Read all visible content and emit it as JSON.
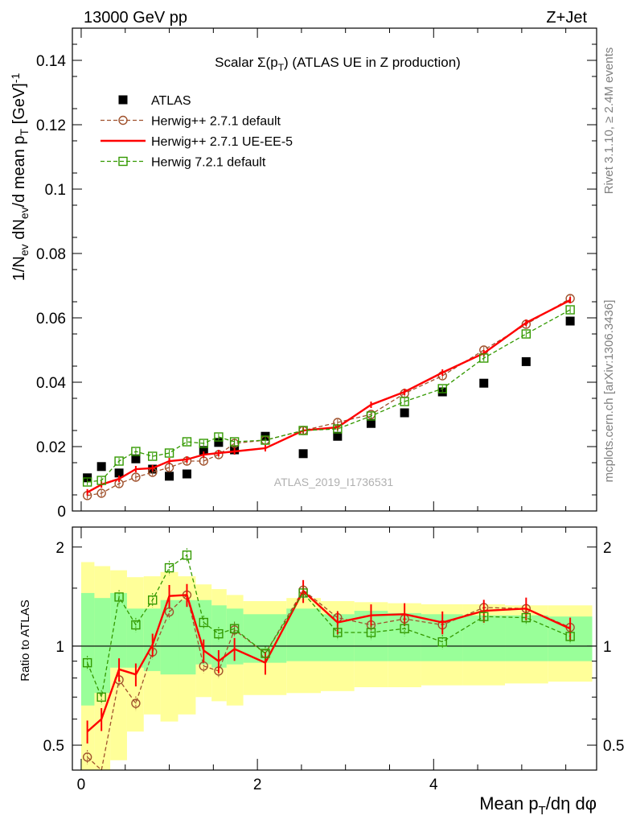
{
  "header": {
    "left_title": "13000 GeV pp",
    "right_title": "Z+Jet"
  },
  "side_labels": {
    "rivet": "Rivet 3.1.10, ≥ 2.4M events",
    "mcplots": "mcplots.cern.ch [arXiv:1306.3436]"
  },
  "watermark": "ATLAS_2019_I1736531",
  "chart_data": [
    {
      "type": "scatter",
      "panel": "main",
      "title_parts": [
        "Scalar Σ(p",
        "T",
        ") (ATLAS UE in Z production)"
      ],
      "ylabel_parts": [
        "1/N",
        "ev",
        " dN",
        "ev",
        "/d mean p",
        "T",
        " [GeV]",
        "-1"
      ],
      "ylim": [
        0,
        0.15
      ],
      "xlim": [
        -0.1,
        5.85
      ],
      "yticks": [
        0,
        0.02,
        0.04,
        0.06,
        0.08,
        0.1,
        0.12,
        0.14
      ],
      "ytick_labels": [
        "0",
        "0.02",
        "0.04",
        "0.06",
        "0.08",
        "0.1",
        "0.12",
        "0.14"
      ],
      "legend_position": "top-left",
      "x": [
        0.07,
        0.23,
        0.43,
        0.62,
        0.81,
        1.0,
        1.2,
        1.39,
        1.56,
        1.74,
        2.09,
        2.52,
        2.91,
        3.29,
        3.67,
        4.1,
        4.57,
        5.05,
        5.55
      ],
      "series": [
        {
          "name": "ATLAS",
          "style": "data",
          "color": "#000000",
          "values": [
            0.0103,
            0.0138,
            0.0118,
            0.0162,
            0.013,
            0.0108,
            0.0115,
            0.0188,
            0.0213,
            0.019,
            0.0232,
            0.0178,
            0.0232,
            0.0272,
            0.0305,
            0.037,
            0.0397,
            0.0464,
            0.059
          ]
        },
        {
          "name": "Herwig++ 2.7.1 default",
          "style": "circle-dash",
          "color": "#a0522d",
          "values": [
            0.0048,
            0.0055,
            0.0085,
            0.0105,
            0.012,
            0.0135,
            0.0155,
            0.0155,
            0.0175,
            0.021,
            0.022,
            0.025,
            0.0275,
            0.03,
            0.0365,
            0.042,
            0.05,
            0.058,
            0.066
          ]
        },
        {
          "name": "Herwig++ 2.7.1 UE-EE-5",
          "style": "solid",
          "color": "#ff0000",
          "values": [
            0.0058,
            0.0082,
            0.01,
            0.013,
            0.0133,
            0.0155,
            0.016,
            0.0175,
            0.018,
            0.0185,
            0.0195,
            0.025,
            0.026,
            0.033,
            0.037,
            0.043,
            0.049,
            0.0585,
            0.0655
          ]
        },
        {
          "name": "Herwig 7.2.1 default",
          "style": "square-dash",
          "color": "#339900",
          "values": [
            0.009,
            0.0095,
            0.0155,
            0.0185,
            0.017,
            0.018,
            0.0215,
            0.021,
            0.023,
            0.0215,
            0.022,
            0.025,
            0.0255,
            0.0295,
            0.034,
            0.038,
            0.0475,
            0.055,
            0.0625
          ]
        }
      ]
    },
    {
      "type": "line",
      "panel": "ratio",
      "ylabel": "Ratio to ATLAS",
      "xlabel_parts": [
        "Mean p",
        "T",
        "/dη dφ"
      ],
      "ylim": [
        0.42,
        2.3
      ],
      "log_y": true,
      "xlim": [
        -0.1,
        5.85
      ],
      "xticks": [
        0,
        2,
        4
      ],
      "xtick_labels": [
        "0",
        "2",
        "4"
      ],
      "yticks": [
        0.5,
        1,
        2
      ],
      "ytick_labels": [
        "0.5",
        "1",
        "2"
      ],
      "reference_line": 1,
      "band_edges": [
        0.0,
        0.15,
        0.33,
        0.52,
        0.71,
        0.9,
        1.1,
        1.3,
        1.48,
        1.65,
        1.84,
        2.33,
        2.72,
        3.1,
        3.48,
        3.86,
        4.33,
        4.81,
        5.3,
        5.8
      ],
      "band_inner": [
        [
          0.66,
          1.45
        ],
        [
          0.72,
          1.4
        ],
        [
          0.86,
          1.45
        ],
        [
          0.86,
          1.3
        ],
        [
          0.84,
          1.3
        ],
        [
          0.82,
          1.38
        ],
        [
          0.82,
          1.38
        ],
        [
          0.88,
          1.38
        ],
        [
          0.86,
          1.33
        ],
        [
          0.88,
          1.3
        ],
        [
          0.89,
          1.25
        ],
        [
          0.9,
          1.3
        ],
        [
          0.9,
          1.25
        ],
        [
          0.9,
          1.28
        ],
        [
          0.9,
          1.26
        ],
        [
          0.9,
          1.25
        ],
        [
          0.9,
          1.24
        ],
        [
          0.9,
          1.24
        ],
        [
          0.9,
          1.23
        ]
      ],
      "band_outer": [
        [
          0.42,
          1.8
        ],
        [
          0.42,
          1.75
        ],
        [
          0.45,
          1.7
        ],
        [
          0.55,
          1.62
        ],
        [
          0.62,
          1.63
        ],
        [
          0.59,
          1.68
        ],
        [
          0.62,
          1.63
        ],
        [
          0.7,
          1.54
        ],
        [
          0.68,
          1.49
        ],
        [
          0.66,
          1.43
        ],
        [
          0.71,
          1.37
        ],
        [
          0.72,
          1.4
        ],
        [
          0.73,
          1.37
        ],
        [
          0.75,
          1.36
        ],
        [
          0.75,
          1.35
        ],
        [
          0.76,
          1.34
        ],
        [
          0.76,
          1.34
        ],
        [
          0.77,
          1.33
        ],
        [
          0.78,
          1.33
        ]
      ],
      "x": [
        0.07,
        0.23,
        0.43,
        0.62,
        0.81,
        1.0,
        1.2,
        1.39,
        1.56,
        1.74,
        2.09,
        2.52,
        2.91,
        3.29,
        3.67,
        4.1,
        4.57,
        5.05,
        5.55
      ],
      "series": [
        {
          "name": "Herwig++ 2.7.1 default",
          "style": "circle-dash",
          "color": "#a0522d",
          "values": [
            0.46,
            0.35,
            0.79,
            0.67,
            0.96,
            1.27,
            1.43,
            0.87,
            0.84,
            1.12,
            0.95,
            1.48,
            1.22,
            1.16,
            1.21,
            1.16,
            1.31,
            1.3,
            1.14
          ]
        },
        {
          "name": "Herwig++ 2.7.1 UE-EE-5",
          "style": "solid",
          "color": "#ff0000",
          "values": [
            0.55,
            0.6,
            0.85,
            0.82,
            1.01,
            1.42,
            1.43,
            0.97,
            0.9,
            0.98,
            0.89,
            1.47,
            1.18,
            1.24,
            1.25,
            1.18,
            1.28,
            1.3,
            1.13
          ]
        },
        {
          "name": "Herwig 7.2.1 default",
          "style": "square-dash",
          "color": "#339900",
          "values": [
            0.89,
            0.7,
            1.41,
            1.16,
            1.38,
            1.73,
            1.89,
            1.18,
            1.09,
            1.13,
            0.95,
            1.45,
            1.1,
            1.1,
            1.13,
            1.03,
            1.23,
            1.22,
            1.07
          ]
        }
      ]
    }
  ]
}
